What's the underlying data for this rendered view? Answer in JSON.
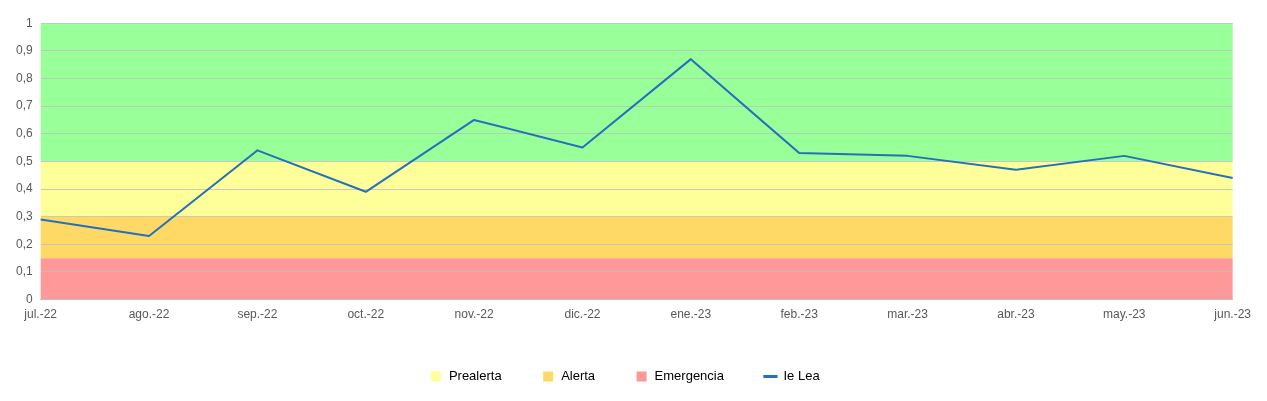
{
  "chart_data": {
    "type": "line",
    "categories": [
      "jul.-22",
      "ago.-22",
      "sep.-22",
      "oct.-22",
      "nov.-22",
      "dic.-22",
      "ene.-23",
      "feb.-23",
      "mar.-23",
      "abr.-23",
      "may.-23",
      "jun.-23"
    ],
    "series": [
      {
        "name": "Ie Lea",
        "color": "#2470bd",
        "values": [
          0.29,
          0.23,
          0.54,
          0.39,
          0.65,
          0.55,
          0.87,
          0.53,
          0.52,
          0.47,
          0.52,
          0.44
        ]
      }
    ],
    "bands": [
      {
        "axis": "y",
        "from": 0.5,
        "to": 1,
        "color": "#99ff99"
      },
      {
        "axis": "y",
        "from": 0.3,
        "to": 0.5,
        "label": "Prealerta",
        "color": "#ffff99"
      },
      {
        "axis": "y",
        "from": 0.15,
        "to": 0.3,
        "label": "Alerta",
        "color": "#ffd966"
      },
      {
        "axis": "y",
        "from": 0,
        "to": 0.15,
        "label": "Emergencia",
        "color": "#ff9999"
      }
    ],
    "ylim": [
      0,
      1
    ],
    "yticks": [
      {
        "value": 0,
        "label": "0"
      },
      {
        "value": 0.1,
        "label": "0,1"
      },
      {
        "value": 0.2,
        "label": "0,2"
      },
      {
        "value": 0.3,
        "label": "0,3"
      },
      {
        "value": 0.4,
        "label": "0,4"
      },
      {
        "value": 0.5,
        "label": "0,5"
      },
      {
        "value": 0.6,
        "label": "0,6"
      },
      {
        "value": 0.7,
        "label": "0,7"
      },
      {
        "value": 0.8,
        "label": "0,8"
      },
      {
        "value": 0.9,
        "label": "0,9"
      },
      {
        "value": 1,
        "label": "1"
      }
    ],
    "grid": "y",
    "legend": "bottom",
    "marker": "none",
    "line_style": "solid"
  }
}
